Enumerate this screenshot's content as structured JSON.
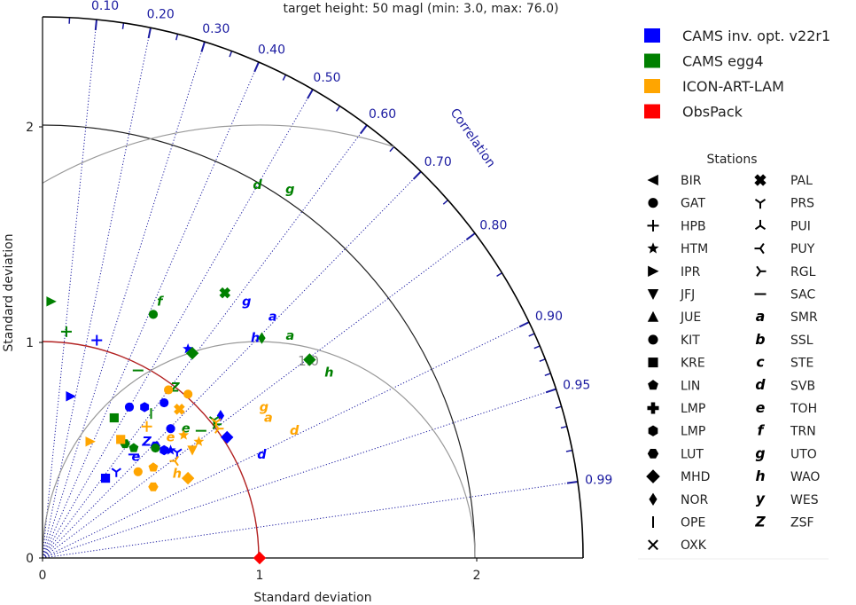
{
  "chart_data": {
    "type": "scatter",
    "subtype": "taylor-diagram",
    "title": "target height: 50 magl (min: 3.0, max: 76.0)",
    "xlabel": "Standard deviation",
    "ylabel": "Standard deviation",
    "x_ticks": [
      "0",
      "1",
      "2"
    ],
    "y_ticks": [
      "0",
      "1",
      "2"
    ],
    "std_max": 2.5,
    "reference_std": 1.0,
    "std_arcs": [
      2.0
    ],
    "rmsd_arcs": [
      1.0,
      2.0
    ],
    "rmsd_label": "1.0",
    "correlation_label": "Correlation",
    "correlation_ticks": [
      "0.10",
      "0.20",
      "0.30",
      "0.40",
      "0.50",
      "0.60",
      "0.70",
      "0.80",
      "0.90",
      "0.95",
      "0.99"
    ],
    "legend_models": [
      {
        "name": "CAMS inv. opt. v22r1",
        "color": "#0000ff"
      },
      {
        "name": "CAMS egg4",
        "color": "#008000"
      },
      {
        "name": "ICON-ART-LAM",
        "color": "#ffa500"
      },
      {
        "name": "ObsPack",
        "color": "#ff0000"
      }
    ],
    "stations_title": "Stations",
    "stations": [
      {
        "name": "BIR",
        "marker": "<"
      },
      {
        "name": "GAT",
        "marker": "o"
      },
      {
        "name": "HPB",
        "marker": "+"
      },
      {
        "name": "HTM",
        "marker": "*"
      },
      {
        "name": "IPR",
        "marker": ">"
      },
      {
        "name": "JFJ",
        "marker": "v"
      },
      {
        "name": "JUE",
        "marker": "^"
      },
      {
        "name": "KIT",
        "marker": "8"
      },
      {
        "name": "KRE",
        "marker": "s"
      },
      {
        "name": "LIN",
        "marker": "p"
      },
      {
        "name": "LMP",
        "marker": "P"
      },
      {
        "name": "LMP",
        "marker": "h"
      },
      {
        "name": "LUT",
        "marker": "H"
      },
      {
        "name": "MHD",
        "marker": "D"
      },
      {
        "name": "NOR",
        "marker": "d"
      },
      {
        "name": "OPE",
        "marker": "|"
      },
      {
        "name": "OXK",
        "marker": "x"
      },
      {
        "name": "PAL",
        "marker": "X"
      },
      {
        "name": "PRS",
        "marker": "1"
      },
      {
        "name": "PUI",
        "marker": "2"
      },
      {
        "name": "PUY",
        "marker": "3"
      },
      {
        "name": "RGL",
        "marker": "4"
      },
      {
        "name": "SAC",
        "marker": "_"
      },
      {
        "name": "SMR",
        "marker": "$a$"
      },
      {
        "name": "SSL",
        "marker": "$b$"
      },
      {
        "name": "STE",
        "marker": "$c$"
      },
      {
        "name": "SVB",
        "marker": "$d$"
      },
      {
        "name": "TOH",
        "marker": "$e$"
      },
      {
        "name": "TRN",
        "marker": "$f$"
      },
      {
        "name": "UTO",
        "marker": "$g$"
      },
      {
        "name": "WAO",
        "marker": "$h$"
      },
      {
        "name": "WES",
        "marker": "$y$"
      },
      {
        "name": "ZSF",
        "marker": "$Z$"
      }
    ],
    "series": [
      {
        "model": 0,
        "points": [
          {
            "s": 2,
            "x": 0.25,
            "y": 1.01
          },
          {
            "s": 29,
            "x": 0.94,
            "y": 1.19
          },
          {
            "s": 23,
            "x": 1.06,
            "y": 1.12
          },
          {
            "s": 30,
            "x": 0.98,
            "y": 1.02
          },
          {
            "s": 3,
            "x": 0.67,
            "y": 0.97
          },
          {
            "s": 4,
            "x": 0.13,
            "y": 0.75
          },
          {
            "s": 1,
            "x": 0.4,
            "y": 0.7
          },
          {
            "s": 11,
            "x": 0.47,
            "y": 0.7
          },
          {
            "s": 7,
            "x": 0.56,
            "y": 0.72
          },
          {
            "s": 1,
            "x": 0.59,
            "y": 0.6
          },
          {
            "s": 32,
            "x": 0.48,
            "y": 0.54
          },
          {
            "s": 27,
            "x": 0.43,
            "y": 0.47
          },
          {
            "s": 12,
            "x": 0.52,
            "y": 0.52
          },
          {
            "s": 11,
            "x": 0.56,
            "y": 0.5
          },
          {
            "s": 3,
            "x": 0.59,
            "y": 0.5
          },
          {
            "s": 18,
            "x": 0.62,
            "y": 0.49
          },
          {
            "s": 14,
            "x": 0.82,
            "y": 0.66
          },
          {
            "s": 13,
            "x": 0.85,
            "y": 0.56
          },
          {
            "s": 26,
            "x": 1.01,
            "y": 0.48
          },
          {
            "s": 8,
            "x": 0.29,
            "y": 0.37
          },
          {
            "s": 18,
            "x": 0.34,
            "y": 0.4
          },
          {
            "s": 22,
            "x": 0.42,
            "y": 0.48
          }
        ]
      },
      {
        "model": 1,
        "points": [
          {
            "s": 4,
            "x": 0.04,
            "y": 1.19
          },
          {
            "s": 2,
            "x": 0.11,
            "y": 1.05
          },
          {
            "s": 1,
            "x": 0.51,
            "y": 1.13
          },
          {
            "s": 28,
            "x": 0.54,
            "y": 1.19
          },
          {
            "s": 17,
            "x": 0.84,
            "y": 1.23
          },
          {
            "s": 29,
            "x": 1.14,
            "y": 1.71
          },
          {
            "s": 26,
            "x": 0.99,
            "y": 1.73
          },
          {
            "s": 14,
            "x": 1.01,
            "y": 1.02
          },
          {
            "s": 23,
            "x": 1.14,
            "y": 1.03
          },
          {
            "s": 13,
            "x": 0.69,
            "y": 0.95
          },
          {
            "s": 13,
            "x": 1.23,
            "y": 0.92
          },
          {
            "s": 30,
            "x": 1.32,
            "y": 0.86
          },
          {
            "s": 22,
            "x": 0.44,
            "y": 0.87
          },
          {
            "s": 32,
            "x": 0.61,
            "y": 0.79
          },
          {
            "s": 8,
            "x": 0.33,
            "y": 0.65
          },
          {
            "s": 15,
            "x": 0.5,
            "y": 0.67
          },
          {
            "s": 27,
            "x": 0.66,
            "y": 0.6
          },
          {
            "s": 22,
            "x": 0.73,
            "y": 0.59
          },
          {
            "s": 21,
            "x": 0.8,
            "y": 0.62
          },
          {
            "s": 18,
            "x": 0.79,
            "y": 0.64
          },
          {
            "s": 12,
            "x": 0.38,
            "y": 0.53
          },
          {
            "s": 9,
            "x": 0.42,
            "y": 0.51
          },
          {
            "s": 1,
            "x": 0.52,
            "y": 0.51
          }
        ]
      },
      {
        "model": 2,
        "points": [
          {
            "s": 1,
            "x": 0.58,
            "y": 0.78
          },
          {
            "s": 7,
            "x": 0.67,
            "y": 0.76
          },
          {
            "s": 17,
            "x": 0.63,
            "y": 0.69
          },
          {
            "s": 29,
            "x": 1.02,
            "y": 0.7
          },
          {
            "s": 23,
            "x": 1.04,
            "y": 0.65
          },
          {
            "s": 26,
            "x": 1.16,
            "y": 0.59
          },
          {
            "s": 2,
            "x": 0.48,
            "y": 0.61
          },
          {
            "s": 27,
            "x": 0.59,
            "y": 0.56
          },
          {
            "s": 3,
            "x": 0.65,
            "y": 0.57
          },
          {
            "s": 3,
            "x": 0.72,
            "y": 0.54
          },
          {
            "s": 5,
            "x": 0.69,
            "y": 0.5
          },
          {
            "s": 4,
            "x": 0.22,
            "y": 0.54
          },
          {
            "s": 8,
            "x": 0.36,
            "y": 0.55
          },
          {
            "s": 1,
            "x": 0.44,
            "y": 0.4
          },
          {
            "s": 9,
            "x": 0.51,
            "y": 0.42
          },
          {
            "s": 12,
            "x": 0.51,
            "y": 0.33
          },
          {
            "s": 30,
            "x": 0.62,
            "y": 0.39
          },
          {
            "s": 13,
            "x": 0.67,
            "y": 0.37
          },
          {
            "s": 20,
            "x": 0.61,
            "y": 0.45
          },
          {
            "s": 21,
            "x": 0.81,
            "y": 0.6
          },
          {
            "s": 18,
            "x": 0.8,
            "y": 0.63
          }
        ]
      },
      {
        "model": 3,
        "points": [
          {
            "s": 13,
            "x": 1.0,
            "y": 0.0
          }
        ]
      }
    ]
  }
}
